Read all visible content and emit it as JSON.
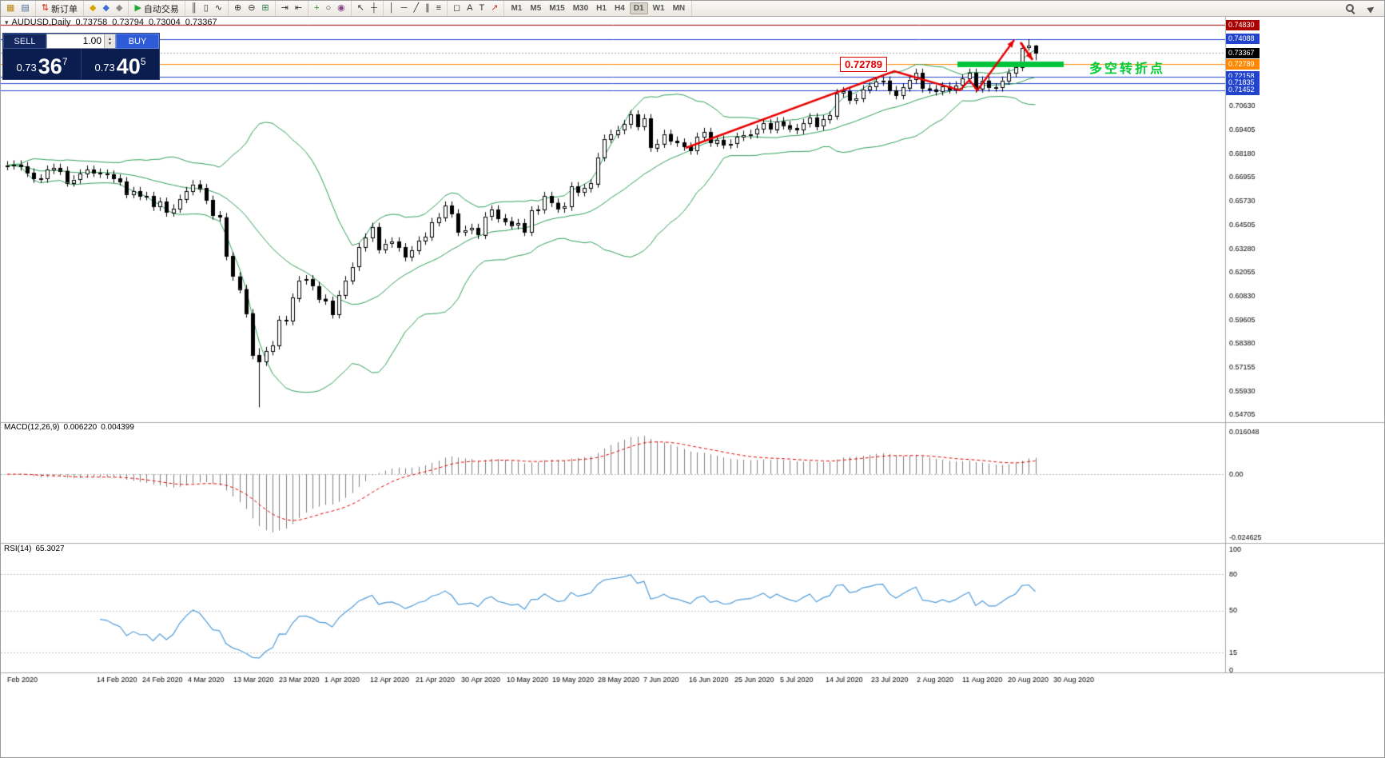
{
  "toolbar": {
    "groups": [
      {
        "name": "window-group",
        "items": [
          {
            "name": "new-chart-button",
            "glyph": "▦",
            "color": "#b8860b"
          },
          {
            "name": "profiles-button",
            "glyph": "▤",
            "color": "#4a6b9a"
          }
        ]
      },
      {
        "name": "order-group",
        "items": [
          {
            "name": "new-order-button",
            "glyph": "⇅",
            "color": "#cc2200",
            "label": "新订单"
          }
        ]
      },
      {
        "name": "panel-group",
        "items": [
          {
            "name": "market-watch-button",
            "glyph": "◆",
            "color": "#d9a400"
          },
          {
            "name": "data-window-button",
            "glyph": "◆",
            "color": "#3a6fd8"
          },
          {
            "name": "navigator-button",
            "glyph": "◆",
            "color": "#8a8a8a"
          }
        ]
      },
      {
        "name": "autotrading-group",
        "items": [
          {
            "name": "autotrading-button",
            "glyph": "▶",
            "color": "#1fa832",
            "label": "自动交易"
          }
        ]
      },
      {
        "name": "chart-type-group",
        "items": [
          {
            "name": "bar-chart-button",
            "glyph": "║",
            "color": "#333333"
          },
          {
            "name": "candlestick-chart-button",
            "glyph": "▯",
            "color": "#333333"
          },
          {
            "name": "line-chart-button",
            "glyph": "∿",
            "color": "#333333"
          }
        ]
      },
      {
        "name": "zoom-group",
        "items": [
          {
            "name": "zoom-in-button",
            "glyph": "⊕",
            "color": "#333333"
          },
          {
            "name": "zoom-out-button",
            "glyph": "⊖",
            "color": "#333333"
          },
          {
            "name": "tile-windows-button",
            "glyph": "⊞",
            "color": "#2a7a4a"
          }
        ]
      },
      {
        "name": "scroll-group",
        "items": [
          {
            "name": "auto-scroll-button",
            "glyph": "⇥",
            "color": "#333333"
          },
          {
            "name": "chart-shift-button",
            "glyph": "⇤",
            "color": "#333333"
          }
        ]
      },
      {
        "name": "indicator-group",
        "items": [
          {
            "name": "indicators-button",
            "glyph": "+",
            "color": "#1a8f1a"
          },
          {
            "name": "cycles-button",
            "glyph": "○",
            "color": "#333333"
          },
          {
            "name": "objects-list-button",
            "glyph": "◉",
            "color": "#884488"
          }
        ]
      },
      {
        "name": "cursor-group",
        "items": [
          {
            "name": "cursor-button",
            "glyph": "↖",
            "color": "#333333"
          },
          {
            "name": "crosshair-button",
            "glyph": "┼",
            "color": "#333333"
          }
        ]
      },
      {
        "name": "line-tools-group",
        "items": [
          {
            "name": "vertical-line-button",
            "glyph": "│",
            "color": "#333333"
          },
          {
            "name": "horizontal-line-button",
            "glyph": "─",
            "color": "#333333"
          },
          {
            "name": "trendline-button",
            "glyph": "╱",
            "color": "#333333"
          },
          {
            "name": "channel-button",
            "glyph": "∥",
            "color": "#333333"
          },
          {
            "name": "fibonacci-button",
            "glyph": "≡",
            "color": "#333333"
          }
        ]
      },
      {
        "name": "object-group",
        "items": [
          {
            "name": "shapes-button",
            "glyph": "◻",
            "color": "#333333"
          },
          {
            "name": "text-button",
            "glyph": "A",
            "color": "#333333"
          },
          {
            "name": "label-button",
            "glyph": "T",
            "color": "#333333"
          },
          {
            "name": "arrows-button",
            "glyph": "↗",
            "color": "#cc3333"
          }
        ]
      }
    ],
    "timeframes": {
      "items": [
        "M1",
        "M5",
        "M15",
        "M30",
        "H1",
        "H4",
        "D1",
        "W1",
        "MN"
      ],
      "active": "D1"
    }
  },
  "chart_header": {
    "symbol": "AUDUSD,Daily",
    "open": "0.73758",
    "high": "0.73794",
    "low": "0.73004",
    "close": "0.73367"
  },
  "oct": {
    "sell_label": "SELL",
    "buy_label": "BUY",
    "volume": "1.00",
    "sell_price": {
      "prefix": "0.73",
      "pips": "36",
      "point": "7"
    },
    "buy_price": {
      "prefix": "0.73",
      "pips": "40",
      "point": "5"
    }
  },
  "icons": {
    "chart_dropdown": "▾",
    "spinner_up": "▴",
    "spinner_down": "▾"
  },
  "annotations": {
    "resistance_price": "0.72789",
    "turning_point_text": "多空转折点",
    "zone_color": "#00c53c",
    "trend_color": "#e60000"
  },
  "chart_data": {
    "type": "candlestick",
    "symbol": "AUDUSD",
    "period": "Daily",
    "title": "AUDUSD,Daily  0.73758 0.73794 0.73004 0.73367",
    "price_axis": {
      "max": 0.7483,
      "min": 0.54705,
      "ticks": [
        "0.70630",
        "0.69405",
        "0.68180",
        "0.66955",
        "0.65730",
        "0.64505",
        "0.63280",
        "0.62055",
        "0.60830",
        "0.59605",
        "0.58380",
        "0.57155",
        "0.55930",
        "0.54705"
      ]
    },
    "level_lines": [
      {
        "price": 0.7483,
        "color": "#990000"
      },
      {
        "price": 0.74088,
        "color": "#2244cc"
      },
      {
        "price": 0.72789,
        "color": "#ff8800"
      },
      {
        "price": 0.72158,
        "color": "#2244cc"
      },
      {
        "price": 0.71835,
        "color": "#2244cc"
      },
      {
        "price": 0.71452,
        "color": "#2244cc"
      }
    ],
    "bid_line": {
      "price": 0.73367,
      "color": "#aaaaaa"
    },
    "price_tags": [
      {
        "label": "0.74830",
        "price": 0.7483,
        "bg": "#aa0000"
      },
      {
        "label": "0.74088",
        "price": 0.74088,
        "bg": "#2244cc"
      },
      {
        "label": "0.73367",
        "price": 0.73367,
        "bg": "#000000"
      },
      {
        "label": "0.72789",
        "price": 0.72789,
        "bg": "#ff8800"
      },
      {
        "label": "0.72158",
        "price": 0.72158,
        "bg": "#2244cc"
      },
      {
        "label": "0.71835",
        "price": 0.71835,
        "bg": "#2244cc"
      },
      {
        "label": "0.71452",
        "price": 0.71452,
        "bg": "#2244cc"
      }
    ],
    "first_open": 0.6755,
    "wick": 0.0022,
    "closes": [
      0.6758,
      0.6762,
      0.6753,
      0.672,
      0.669,
      0.669,
      0.6735,
      0.6745,
      0.673,
      0.667,
      0.6685,
      0.6715,
      0.6735,
      0.672,
      0.6715,
      0.671,
      0.669,
      0.6675,
      0.661,
      0.6625,
      0.66,
      0.66,
      0.6545,
      0.657,
      0.6515,
      0.6535,
      0.6585,
      0.6625,
      0.666,
      0.664,
      0.658,
      0.65,
      0.649,
      0.629,
      0.6185,
      0.612,
      0.5995,
      0.578,
      0.5745,
      0.58,
      0.583,
      0.596,
      0.5955,
      0.6075,
      0.6165,
      0.617,
      0.6135,
      0.607,
      0.606,
      0.599,
      0.609,
      0.6165,
      0.6235,
      0.6335,
      0.6385,
      0.644,
      0.6325,
      0.6355,
      0.6365,
      0.6335,
      0.6285,
      0.632,
      0.637,
      0.639,
      0.6465,
      0.649,
      0.655,
      0.651,
      0.6415,
      0.6425,
      0.6435,
      0.64,
      0.6495,
      0.653,
      0.6485,
      0.647,
      0.645,
      0.646,
      0.6415,
      0.6525,
      0.653,
      0.66,
      0.6565,
      0.6535,
      0.6545,
      0.665,
      0.662,
      0.664,
      0.6665,
      0.68,
      0.6895,
      0.692,
      0.694,
      0.697,
      0.702,
      0.696,
      0.7,
      0.685,
      0.687,
      0.692,
      0.6885,
      0.6875,
      0.6855,
      0.6835,
      0.6905,
      0.693,
      0.6875,
      0.689,
      0.6865,
      0.687,
      0.6905,
      0.6915,
      0.692,
      0.6945,
      0.6975,
      0.6945,
      0.6985,
      0.6965,
      0.695,
      0.694,
      0.6975,
      0.7005,
      0.696,
      0.6995,
      0.7015,
      0.713,
      0.714,
      0.7095,
      0.7105,
      0.715,
      0.7165,
      0.719,
      0.7195,
      0.7145,
      0.712,
      0.716,
      0.72,
      0.7235,
      0.7155,
      0.715,
      0.714,
      0.7165,
      0.715,
      0.717,
      0.7205,
      0.7235,
      0.7155,
      0.7195,
      0.716,
      0.716,
      0.7195,
      0.7235,
      0.7265,
      0.7365,
      0.7375,
      0.73367
    ],
    "overrides": {
      "38": [
        0.578,
        0.5815,
        0.551,
        0.5745
      ],
      "154": [
        0.7365,
        0.74088,
        0.735,
        0.7375
      ],
      "155": [
        0.73758,
        0.73794,
        0.73004,
        0.73367
      ]
    },
    "bollinger": {
      "period": 20,
      "deviation": 2,
      "color": "#2e9e57"
    },
    "candle_colors": {
      "up": "#ffffff",
      "down": "#000000",
      "outline": "#000000"
    },
    "macd": {
      "label": "MACD(12,26,9)",
      "value_main": "0.006220",
      "value_signal": "0.004399",
      "fast": 12,
      "slow": 26,
      "signal": 9,
      "scale_max": 0.016048,
      "scale_min": -0.024625,
      "axis": [
        {
          "text": "0.016048",
          "v": 0.016048
        },
        {
          "text": "0.00",
          "v": 0
        },
        {
          "text": "-0.024625",
          "v": -0.024625
        }
      ],
      "hist_color": "#7f7f7f",
      "signal_color": "#e60000"
    },
    "rsi": {
      "label": "RSI(14)",
      "value": "65.3027",
      "period": 14,
      "color": "#4f9bd8",
      "levels": [
        80,
        50,
        15
      ],
      "axis": [
        {
          "text": "100",
          "v": 100
        },
        {
          "text": "80",
          "v": 80
        },
        {
          "text": "50",
          "v": 50
        },
        {
          "text": "15",
          "v": 15
        },
        {
          "text": "0",
          "v": 0
        }
      ]
    },
    "dates": [
      "Feb 2020",
      "14 Feb 2020",
      "24 Feb 2020",
      "4 Mar 2020",
      "13 Mar 2020",
      "23 Mar 2020",
      "1 Apr 2020",
      "12 Apr 2020",
      "21 Apr 2020",
      "30 Apr 2020",
      "10 May 2020",
      "19 May 2020",
      "28 May 2020",
      "7 Jun 2020",
      "16 Jun 2020",
      "25 Jun 2020",
      "5 Jul 2020",
      "14 Jul 2020",
      "23 Jul 2020",
      "2 Aug 2020",
      "11 Aug 2020",
      "20 Aug 2020",
      "30 Aug 2020"
    ]
  }
}
